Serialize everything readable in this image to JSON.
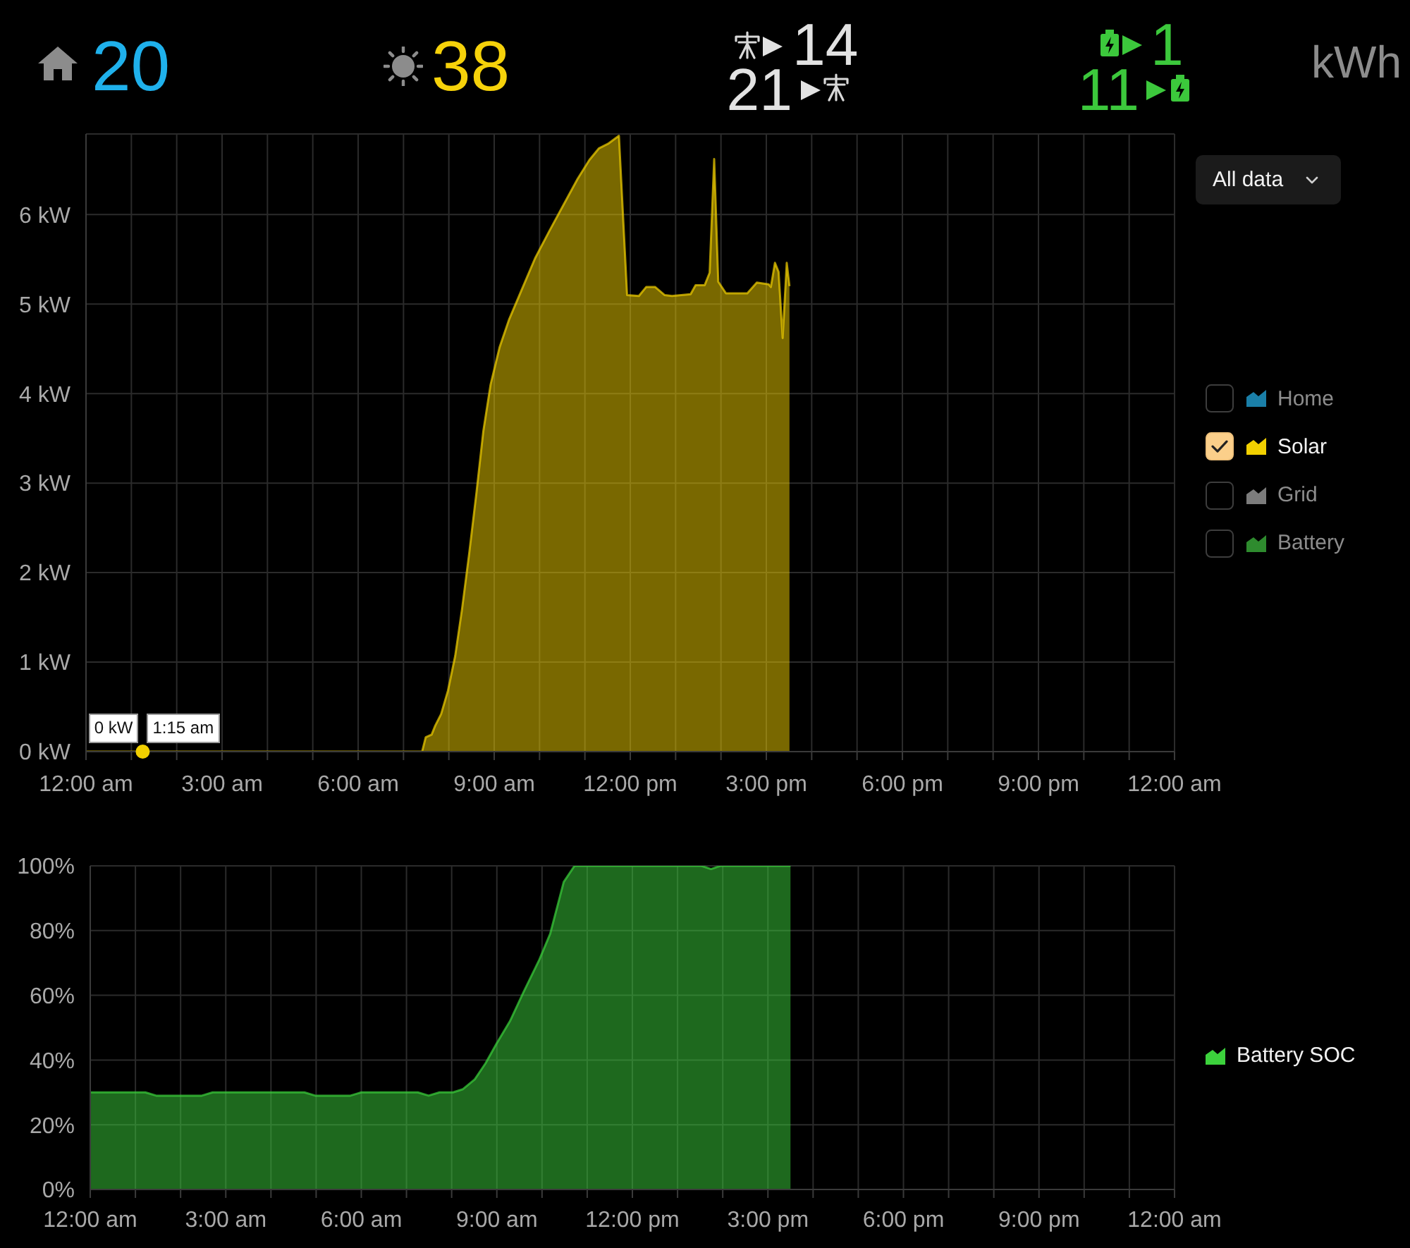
{
  "chart_data": [
    {
      "type": "other",
      "annotations": [
        "20",
        "38",
        "14",
        "21",
        "1",
        "11",
        "kWh"
      ]
    },
    {
      "type": "area",
      "x": [
        0,
        1.25,
        7.41,
        7.49,
        7.62,
        7.7,
        7.83,
        7.98,
        8.14,
        8.29,
        8.45,
        8.61,
        8.76,
        8.92,
        9.12,
        9.33,
        9.59,
        9.9,
        10.22,
        10.53,
        10.84,
        11.1,
        11.31,
        11.51,
        11.75,
        11.93,
        12.19,
        12.35,
        12.55,
        12.76,
        12.92,
        13.33,
        13.44,
        13.64,
        13.75,
        13.85,
        13.94,
        14.11,
        14.58,
        14.79,
        15.05,
        15.1,
        15.19,
        15.27,
        15.36,
        15.45,
        15.51
      ],
      "xlim": [
        0,
        24
      ],
      "xticks": [
        {
          "value": 0,
          "label": "12:00 am"
        },
        {
          "value": 1,
          "label": null
        },
        {
          "value": 2,
          "label": null
        },
        {
          "value": 3,
          "label": "3:00 am"
        },
        {
          "value": 4,
          "label": null
        },
        {
          "value": 5,
          "label": null
        },
        {
          "value": 6,
          "label": "6:00 am"
        },
        {
          "value": 7,
          "label": null
        },
        {
          "value": 8,
          "label": null
        },
        {
          "value": 9,
          "label": "9:00 am"
        },
        {
          "value": 10,
          "label": null
        },
        {
          "value": 11,
          "label": null
        },
        {
          "value": 12,
          "label": "12:00 pm"
        },
        {
          "value": 13,
          "label": null
        },
        {
          "value": 14,
          "label": null
        },
        {
          "value": 15,
          "label": "3:00 pm"
        },
        {
          "value": 16,
          "label": null
        },
        {
          "value": 17,
          "label": null
        },
        {
          "value": 18,
          "label": "6:00 pm"
        },
        {
          "value": 19,
          "label": null
        },
        {
          "value": 20,
          "label": null
        },
        {
          "value": 21,
          "label": "9:00 pm"
        },
        {
          "value": 22,
          "label": null
        },
        {
          "value": 23,
          "label": null
        },
        {
          "value": 24,
          "label": "12:00 am"
        }
      ],
      "ylim": [
        0,
        6.9
      ],
      "yticks": [
        {
          "value": 0,
          "label": "0 kW"
        },
        {
          "value": 1,
          "label": "1 kW"
        },
        {
          "value": 2,
          "label": "2 kW"
        },
        {
          "value": 3,
          "label": "3 kW"
        },
        {
          "value": 4,
          "label": "4 kW"
        },
        {
          "value": 5,
          "label": "5 kW"
        },
        {
          "value": 6,
          "label": "6 kW"
        }
      ],
      "grid": true,
      "legend": "right",
      "series": [
        {
          "name": "Home",
          "color": "#1a7fa8",
          "values": [
            null,
            null,
            null,
            null,
            null,
            null,
            null,
            null,
            null,
            null,
            null,
            null,
            null,
            null,
            null,
            null,
            null,
            null,
            null,
            null,
            null,
            null,
            null,
            null,
            null,
            null,
            null,
            null,
            null,
            null,
            null,
            null,
            null,
            null,
            null,
            null,
            null,
            null,
            null,
            null,
            null,
            null,
            null,
            null,
            null,
            null,
            null
          ]
        },
        {
          "name": "Solar",
          "color": "#f2d000",
          "values": [
            0,
            0,
            0,
            0.16,
            0.19,
            0.29,
            0.42,
            0.68,
            1.07,
            1.59,
            2.22,
            2.9,
            3.58,
            4.1,
            4.52,
            4.83,
            5.14,
            5.51,
            5.82,
            6.11,
            6.4,
            6.61,
            6.74,
            6.79,
            6.88,
            5.1,
            5.09,
            5.19,
            5.19,
            5.1,
            5.09,
            5.11,
            5.21,
            5.21,
            5.35,
            6.62,
            5.25,
            5.12,
            5.12,
            5.24,
            5.22,
            5.19,
            5.46,
            5.36,
            4.62,
            5.46,
            5.2
          ]
        },
        {
          "name": "Grid",
          "color": "#7c7c7c",
          "values": [
            null,
            null,
            null,
            null,
            null,
            null,
            null,
            null,
            null,
            null,
            null,
            null,
            null,
            null,
            null,
            null,
            null,
            null,
            null,
            null,
            null,
            null,
            null,
            null,
            null,
            null,
            null,
            null,
            null,
            null,
            null,
            null,
            null,
            null,
            null,
            null,
            null,
            null,
            null,
            null,
            null,
            null,
            null,
            null,
            null,
            null,
            null
          ]
        },
        {
          "name": "Battery",
          "color": "#2e8b2e",
          "values": [
            null,
            null,
            null,
            null,
            null,
            null,
            null,
            null,
            null,
            null,
            null,
            null,
            null,
            null,
            null,
            null,
            null,
            null,
            null,
            null,
            null,
            null,
            null,
            null,
            null,
            null,
            null,
            null,
            null,
            null,
            null,
            null,
            null,
            null,
            null,
            null,
            null,
            null,
            null,
            null,
            null,
            null,
            null,
            null,
            null,
            null,
            null
          ]
        }
      ],
      "annotations": [
        "All data",
        {
          "text": "0 kW",
          "x": 1.25,
          "y": 0
        },
        {
          "text": "1:15 am",
          "x": 1.25,
          "y": 0
        }
      ]
    },
    {
      "type": "area",
      "x": [
        0,
        1.22,
        1.46,
        2.47,
        2.71,
        4.74,
        4.98,
        5.76,
        6.0,
        7.25,
        7.49,
        7.73,
        8.03,
        8.25,
        8.51,
        8.75,
        8.99,
        9.29,
        9.59,
        9.94,
        10.18,
        10.48,
        10.72,
        13.53,
        13.74,
        13.95,
        15.5
      ],
      "xlim": [
        0,
        24
      ],
      "xticks": [
        {
          "value": 0,
          "label": "12:00 am"
        },
        {
          "value": 1,
          "label": null
        },
        {
          "value": 2,
          "label": null
        },
        {
          "value": 3,
          "label": "3:00 am"
        },
        {
          "value": 4,
          "label": null
        },
        {
          "value": 5,
          "label": null
        },
        {
          "value": 6,
          "label": "6:00 am"
        },
        {
          "value": 7,
          "label": null
        },
        {
          "value": 8,
          "label": null
        },
        {
          "value": 9,
          "label": "9:00 am"
        },
        {
          "value": 10,
          "label": null
        },
        {
          "value": 11,
          "label": null
        },
        {
          "value": 12,
          "label": "12:00 pm"
        },
        {
          "value": 13,
          "label": null
        },
        {
          "value": 14,
          "label": null
        },
        {
          "value": 15,
          "label": "3:00 pm"
        },
        {
          "value": 16,
          "label": null
        },
        {
          "value": 17,
          "label": null
        },
        {
          "value": 18,
          "label": "6:00 pm"
        },
        {
          "value": 19,
          "label": null
        },
        {
          "value": 20,
          "label": null
        },
        {
          "value": 21,
          "label": "9:00 pm"
        },
        {
          "value": 22,
          "label": null
        },
        {
          "value": 23,
          "label": null
        },
        {
          "value": 24,
          "label": "12:00 am"
        }
      ],
      "ylim": [
        0,
        100
      ],
      "yticks": [
        {
          "value": 0,
          "label": "0%"
        },
        {
          "value": 20,
          "label": "20%"
        },
        {
          "value": 40,
          "label": "40%"
        },
        {
          "value": 60,
          "label": "60%"
        },
        {
          "value": 80,
          "label": "80%"
        },
        {
          "value": 100,
          "label": "100%"
        }
      ],
      "grid": true,
      "legend": "right",
      "series": [
        {
          "name": "Battery SOC",
          "color": "#3cd23c",
          "values": [
            30,
            30,
            29,
            29,
            30,
            30,
            29,
            29,
            30,
            30,
            29,
            30,
            30,
            31,
            34,
            39,
            45,
            52,
            61,
            71,
            79,
            95,
            100,
            100,
            99,
            100,
            100
          ]
        }
      ]
    }
  ]
}
